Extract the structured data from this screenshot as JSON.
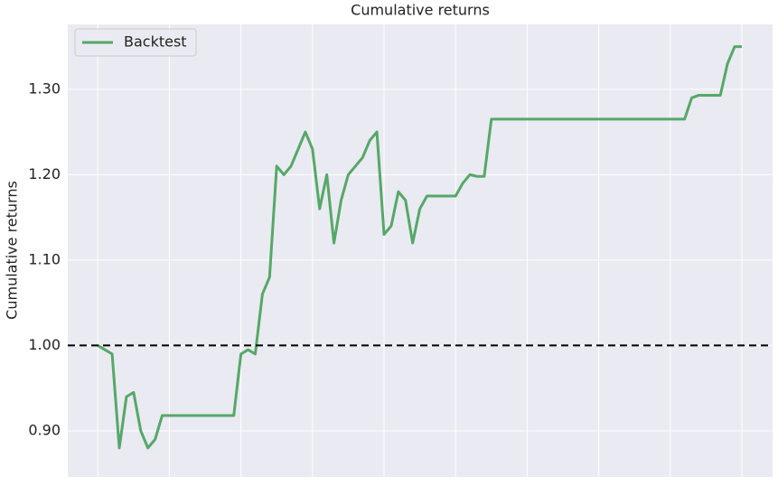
{
  "chart_data": {
    "type": "line",
    "title": "Cumulative returns",
    "y_label": "Cumulative returns",
    "series": [
      {
        "name": "Backtest",
        "color": "#55a868",
        "values": [
          1.0,
          0.995,
          0.99,
          0.88,
          0.94,
          0.945,
          0.9,
          0.88,
          0.89,
          0.918,
          0.918,
          0.918,
          0.918,
          0.918,
          0.918,
          0.918,
          0.918,
          0.918,
          0.918,
          0.918,
          0.99,
          0.995,
          0.99,
          1.06,
          1.08,
          1.21,
          1.2,
          1.21,
          1.23,
          1.25,
          1.23,
          1.16,
          1.2,
          1.12,
          1.17,
          1.2,
          1.21,
          1.22,
          1.24,
          1.25,
          1.13,
          1.14,
          1.18,
          1.17,
          1.12,
          1.16,
          1.175,
          1.175,
          1.175,
          1.175,
          1.175,
          1.19,
          1.2,
          1.198,
          1.198,
          1.265,
          1.265,
          1.265,
          1.265,
          1.265,
          1.265,
          1.265,
          1.265,
          1.265,
          1.265,
          1.265,
          1.265,
          1.265,
          1.265,
          1.265,
          1.265,
          1.265,
          1.265,
          1.265,
          1.265,
          1.265,
          1.265,
          1.265,
          1.265,
          1.265,
          1.265,
          1.265,
          1.265,
          1.29,
          1.293,
          1.293,
          1.293,
          1.293,
          1.33,
          1.35,
          1.35
        ]
      }
    ],
    "xlim": [
      -4.2,
      94.3
    ],
    "xticks": [
      0,
      10,
      20,
      30,
      40,
      50,
      60,
      70,
      80,
      90
    ],
    "ylim": [
      0.846,
      1.376
    ],
    "yticks": [
      {
        "value": 0.9,
        "label": "0.90"
      },
      {
        "value": 1.0,
        "label": "1.00"
      },
      {
        "value": 1.1,
        "label": "1.10"
      },
      {
        "value": 1.2,
        "label": "1.20"
      },
      {
        "value": 1.3,
        "label": "1.30"
      }
    ],
    "baseline": 1.0,
    "grid": true,
    "legend": "upper-left"
  }
}
